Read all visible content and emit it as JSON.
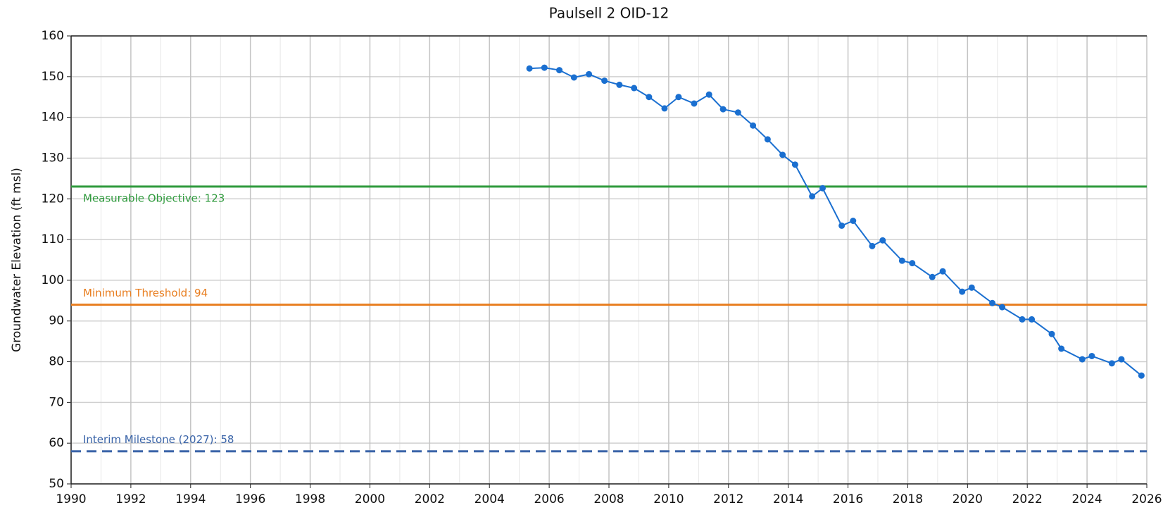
{
  "chart_data": {
    "type": "line",
    "title": "Paulsell 2 OID-12",
    "y_label": "Groundwater Elevation (ft msl)",
    "x": [
      2005.34,
      2005.84,
      2006.34,
      2006.83,
      2007.33,
      2007.85,
      2008.35,
      2008.84,
      2009.34,
      2009.86,
      2010.33,
      2010.85,
      2011.35,
      2011.82,
      2012.32,
      2012.82,
      2013.31,
      2013.81,
      2014.23,
      2014.8,
      2015.15,
      2015.79,
      2016.17,
      2016.81,
      2017.16,
      2017.81,
      2018.15,
      2018.82,
      2019.17,
      2019.82,
      2020.14,
      2020.83,
      2021.16,
      2021.83,
      2022.15,
      2022.82,
      2023.14,
      2023.84,
      2024.16,
      2024.83,
      2025.15,
      2025.82
    ],
    "series": [
      {
        "color": "#1a6fd0",
        "values": [
          152,
          152.2,
          151.6,
          149.8,
          150.6,
          149,
          148,
          147.2,
          145,
          142.2,
          145,
          143.4,
          145.6,
          142,
          141.2,
          138,
          134.6,
          130.8,
          128.4,
          120.6,
          122.6,
          113.4,
          114.6,
          108.4,
          109.8,
          104.8,
          104.2,
          100.8,
          102.2,
          97.2,
          98.2,
          94.4,
          93.4,
          90.4,
          90.4,
          86.8,
          83.2,
          80.6,
          81.4,
          79.6,
          80.6,
          76.6
        ]
      }
    ],
    "reference_lines": [
      {
        "label": "Measurable Objective: 123",
        "value": 123,
        "color": "#2e9a3c",
        "style": "solid",
        "label_side": "below"
      },
      {
        "label": "Minimum Threshold: 94",
        "value": 94,
        "color": "#e87d1e",
        "style": "solid",
        "label_side": "above"
      },
      {
        "label": "Interim Milestone (2027): 58",
        "value": 58,
        "color": "#3a64a8",
        "style": "dashed",
        "label_side": "above"
      }
    ],
    "xlim": [
      1990,
      2026
    ],
    "xticks": [
      1990,
      1992,
      1994,
      1996,
      1998,
      2000,
      2002,
      2004,
      2006,
      2008,
      2010,
      2012,
      2014,
      2016,
      2018,
      2020,
      2022,
      2024,
      2026
    ],
    "xminorticks": [
      1991,
      1993,
      1995,
      1997,
      1999,
      2001,
      2003,
      2005,
      2007,
      2009,
      2011,
      2013,
      2015,
      2017,
      2019,
      2021,
      2023,
      2025
    ],
    "ylim": [
      50,
      160
    ],
    "yticks": [
      50,
      60,
      70,
      80,
      90,
      100,
      110,
      120,
      130,
      140,
      150,
      160
    ],
    "grid": true
  }
}
